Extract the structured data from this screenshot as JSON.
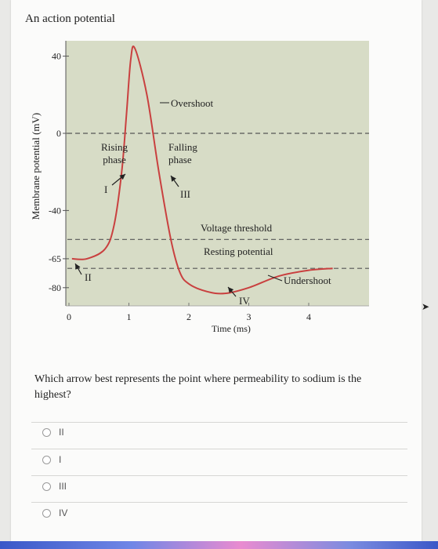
{
  "title": "An action potential",
  "chart_data": {
    "type": "line",
    "title": "An action potential",
    "xlabel": "Time (ms)",
    "ylabel": "Membrane potential (mV)",
    "xlim": [
      0,
      4.5
    ],
    "ylim": [
      -92,
      45
    ],
    "x_ticks": [
      0,
      1,
      2,
      3,
      4
    ],
    "y_ticks": [
      40,
      0,
      -40,
      -65,
      -80
    ],
    "reference_lines": [
      {
        "y": 0
      },
      {
        "y": -55,
        "label": "Voltage threshold"
      },
      {
        "y": -70,
        "label": "Resting potential"
      }
    ],
    "series": [
      {
        "x": [
          0.05,
          0.3,
          0.6,
          0.75,
          0.88,
          0.96,
          1.03,
          1.1,
          1.3,
          1.5,
          1.7,
          1.85,
          2.0,
          2.3,
          2.6,
          3.0,
          3.5,
          4.0,
          4.4
        ],
        "y": [
          -65,
          -65,
          -60,
          -48,
          -20,
          10,
          38,
          44,
          20,
          -20,
          -55,
          -72,
          -78,
          -82,
          -83,
          -80,
          -74,
          -71,
          -70
        ]
      }
    ],
    "annotations": [
      {
        "text": "Overshoot"
      },
      {
        "text": "Rising phase",
        "lines": [
          "Rising",
          "phase"
        ]
      },
      {
        "text": "Falling phase",
        "lines": [
          "Falling",
          "phase"
        ]
      },
      {
        "text": "I"
      },
      {
        "text": "II"
      },
      {
        "text": "III"
      },
      {
        "text": "IV"
      },
      {
        "text": "Undershoot"
      }
    ],
    "background_color": "#d7dcc6",
    "line_color": "#c9403f",
    "grid": false
  },
  "question": {
    "text": "Which arrow best represents the point where permeability to sodium is the highest?",
    "options": [
      "II",
      "I",
      "III",
      "IV"
    ]
  }
}
